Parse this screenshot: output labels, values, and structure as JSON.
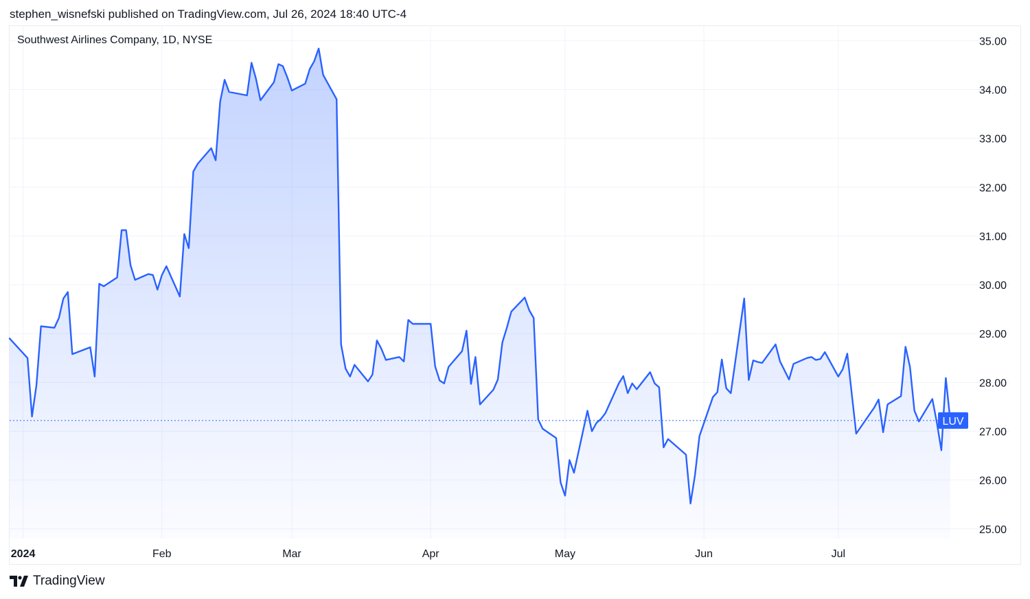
{
  "header": {
    "published_text": "stephen_wisnefski published on TradingView.com, Jul 26, 2024 18:40 UTC-4"
  },
  "legend": {
    "symbol_description": "Southwest Airlines Company, 1D, NYSE"
  },
  "footer": {
    "brand_name": "TradingView"
  },
  "colors": {
    "line": "#2962ff",
    "fill_top": "#2962ff",
    "grid": "#f0f3fa",
    "label_bg": "#2962ff",
    "label_text": "#ffffff"
  },
  "chart_data": {
    "type": "area",
    "ticker_label": "LUV",
    "last_value": 27.22,
    "ylim": [
      24.8,
      35.3
    ],
    "y_ticks": [
      {
        "value": 35,
        "label": "35.00"
      },
      {
        "value": 34,
        "label": "34.00"
      },
      {
        "value": 33,
        "label": "33.00"
      },
      {
        "value": 32,
        "label": "32.00"
      },
      {
        "value": 31,
        "label": "31.00"
      },
      {
        "value": 30,
        "label": "30.00"
      },
      {
        "value": 29,
        "label": "29.00"
      },
      {
        "value": 28,
        "label": "28.00"
      },
      {
        "value": 27,
        "label": "27.00"
      },
      {
        "value": 26,
        "label": "26.00"
      },
      {
        "value": 25,
        "label": "25.00"
      }
    ],
    "x_ticks": [
      {
        "date": "2024-01-01",
        "label": "2024"
      },
      {
        "date": "2024-02-01",
        "label": "Feb"
      },
      {
        "date": "2024-03-01",
        "label": "Mar"
      },
      {
        "date": "2024-04-01",
        "label": "Apr"
      },
      {
        "date": "2024-05-01",
        "label": "May"
      },
      {
        "date": "2024-06-01",
        "label": "Jun"
      },
      {
        "date": "2024-07-01",
        "label": "Jul"
      }
    ],
    "x_range": [
      "2023-12-29",
      "2024-07-30"
    ],
    "dates": [
      "2023-12-29",
      "2024-01-02",
      "2024-01-03",
      "2024-01-04",
      "2024-01-05",
      "2024-01-08",
      "2024-01-09",
      "2024-01-10",
      "2024-01-11",
      "2024-01-12",
      "2024-01-16",
      "2024-01-17",
      "2024-01-18",
      "2024-01-19",
      "2024-01-22",
      "2024-01-23",
      "2024-01-24",
      "2024-01-25",
      "2024-01-26",
      "2024-01-29",
      "2024-01-30",
      "2024-01-31",
      "2024-02-01",
      "2024-02-02",
      "2024-02-05",
      "2024-02-06",
      "2024-02-07",
      "2024-02-08",
      "2024-02-09",
      "2024-02-12",
      "2024-02-13",
      "2024-02-14",
      "2024-02-15",
      "2024-02-16",
      "2024-02-20",
      "2024-02-21",
      "2024-02-22",
      "2024-02-23",
      "2024-02-26",
      "2024-02-27",
      "2024-02-28",
      "2024-02-29",
      "2024-03-01",
      "2024-03-04",
      "2024-03-05",
      "2024-03-06",
      "2024-03-07",
      "2024-03-08",
      "2024-03-11",
      "2024-03-12",
      "2024-03-13",
      "2024-03-14",
      "2024-03-15",
      "2024-03-18",
      "2024-03-19",
      "2024-03-20",
      "2024-03-21",
      "2024-03-22",
      "2024-03-25",
      "2024-03-26",
      "2024-03-27",
      "2024-03-28",
      "2024-04-01",
      "2024-04-02",
      "2024-04-03",
      "2024-04-04",
      "2024-04-05",
      "2024-04-08",
      "2024-04-09",
      "2024-04-10",
      "2024-04-11",
      "2024-04-12",
      "2024-04-15",
      "2024-04-16",
      "2024-04-17",
      "2024-04-18",
      "2024-04-19",
      "2024-04-22",
      "2024-04-23",
      "2024-04-24",
      "2024-04-25",
      "2024-04-26",
      "2024-04-29",
      "2024-04-30",
      "2024-05-01",
      "2024-05-02",
      "2024-05-03",
      "2024-05-06",
      "2024-05-07",
      "2024-05-08",
      "2024-05-09",
      "2024-05-10",
      "2024-05-13",
      "2024-05-14",
      "2024-05-15",
      "2024-05-16",
      "2024-05-17",
      "2024-05-20",
      "2024-05-21",
      "2024-05-22",
      "2024-05-23",
      "2024-05-24",
      "2024-05-28",
      "2024-05-29",
      "2024-05-30",
      "2024-05-31",
      "2024-06-03",
      "2024-06-04",
      "2024-06-05",
      "2024-06-06",
      "2024-06-07",
      "2024-06-10",
      "2024-06-11",
      "2024-06-12",
      "2024-06-13",
      "2024-06-14",
      "2024-06-17",
      "2024-06-18",
      "2024-06-20",
      "2024-06-21",
      "2024-06-24",
      "2024-06-25",
      "2024-06-26",
      "2024-06-27",
      "2024-06-28",
      "2024-07-01",
      "2024-07-02",
      "2024-07-03",
      "2024-07-05",
      "2024-07-08",
      "2024-07-09",
      "2024-07-10",
      "2024-07-11",
      "2024-07-12",
      "2024-07-15",
      "2024-07-16",
      "2024-07-17",
      "2024-07-18",
      "2024-07-19",
      "2024-07-22",
      "2024-07-23",
      "2024-07-24",
      "2024-07-25",
      "2024-07-26"
    ],
    "values": [
      28.9,
      28.5,
      27.3,
      27.95,
      29.15,
      29.12,
      29.32,
      29.72,
      29.85,
      28.58,
      28.72,
      28.12,
      30.02,
      29.97,
      30.15,
      31.12,
      31.12,
      30.4,
      30.1,
      30.22,
      30.2,
      29.9,
      30.2,
      30.38,
      29.76,
      31.04,
      30.75,
      32.32,
      32.48,
      32.8,
      32.55,
      33.75,
      34.2,
      33.95,
      33.88,
      34.55,
      34.22,
      33.78,
      34.15,
      34.52,
      34.48,
      34.25,
      33.98,
      34.12,
      34.42,
      34.58,
      34.84,
      34.3,
      33.8,
      28.78,
      28.28,
      28.12,
      28.36,
      28.02,
      28.16,
      28.86,
      28.69,
      28.46,
      28.52,
      28.43,
      29.28,
      29.2,
      29.2,
      28.33,
      28.04,
      27.98,
      28.32,
      28.64,
      29.06,
      27.97,
      28.52,
      27.55,
      27.85,
      28.06,
      28.82,
      29.12,
      29.45,
      29.74,
      29.48,
      29.32,
      27.24,
      27.05,
      26.86,
      25.95,
      25.68,
      26.41,
      26.15,
      27.42,
      27.0,
      27.17,
      27.25,
      27.37,
      27.98,
      28.13,
      27.78,
      27.98,
      27.86,
      28.21,
      27.98,
      27.9,
      26.67,
      26.84,
      26.52,
      25.52,
      26.1,
      26.9,
      27.7,
      27.8,
      28.47,
      27.88,
      27.78,
      29.72,
      28.05,
      28.45,
      28.42,
      28.4,
      28.78,
      28.43,
      28.06,
      28.38,
      28.5,
      28.52,
      28.46,
      28.48,
      28.62,
      28.12,
      28.27,
      28.59,
      26.95,
      27.35,
      27.48,
      27.65,
      26.98,
      27.55,
      27.72,
      28.73,
      28.32,
      27.42,
      27.2,
      27.66,
      27.18,
      26.61,
      28.09,
      27.22
    ]
  }
}
